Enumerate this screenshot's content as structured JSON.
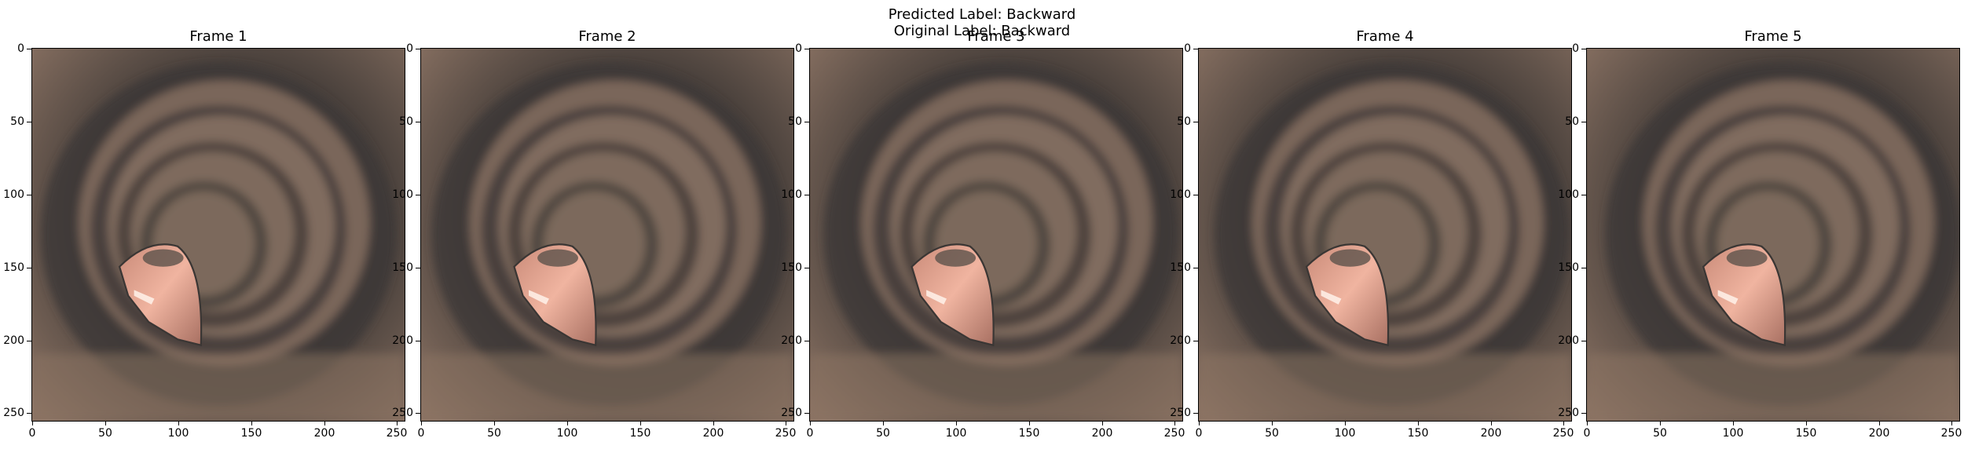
{
  "suptitle": {
    "line1": "Predicted Label: Backward",
    "line2": "Original Label: Backward"
  },
  "frames": [
    {
      "title": "Frame 1"
    },
    {
      "title": "Frame 2"
    },
    {
      "title": "Frame 3"
    },
    {
      "title": "Frame 4"
    },
    {
      "title": "Frame 5"
    }
  ],
  "axes": {
    "x_ticks": [
      "0",
      "50",
      "100",
      "150",
      "200",
      "250"
    ],
    "y_ticks": [
      "0",
      "50",
      "100",
      "150",
      "200",
      "250"
    ],
    "x_range": [
      0,
      256
    ],
    "y_range": [
      0,
      256
    ]
  },
  "colors": {
    "tissue": "#8a7263",
    "lumen_dark": "#3a3634",
    "highlight": "#e8a792"
  }
}
